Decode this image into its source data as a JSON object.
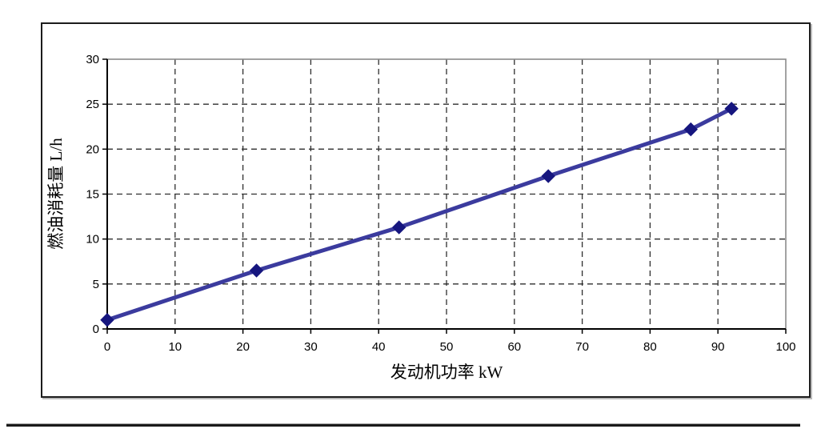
{
  "window": {
    "background_color": "#ffffff"
  },
  "chart_frame": {
    "border_color": "#1c1c1c"
  },
  "chart_data": {
    "type": "line",
    "xlabel": "发动机功率 kW",
    "ylabel": "燃油消耗量 L/h",
    "xlim": [
      0,
      100
    ],
    "ylim": [
      0,
      30
    ],
    "x_ticks": [
      0,
      10,
      20,
      30,
      40,
      50,
      60,
      70,
      80,
      90,
      100
    ],
    "y_ticks": [
      0,
      5,
      10,
      15,
      20,
      25,
      30
    ],
    "grid": "dashed",
    "legend": "none",
    "gridline_color": "#2e2e2e",
    "plot_border_color": "#8a8a8a",
    "axis_color": "#000000",
    "series": [
      {
        "x": [
          0,
          22,
          43,
          65,
          86,
          92
        ],
        "y": [
          1.0,
          6.5,
          11.3,
          17.0,
          22.2,
          24.5
        ],
        "line_color": "#3b3b9e",
        "marker": "diamond",
        "marker_color": "#16167f"
      }
    ]
  },
  "separator": {
    "color": "#1a1a1a"
  }
}
